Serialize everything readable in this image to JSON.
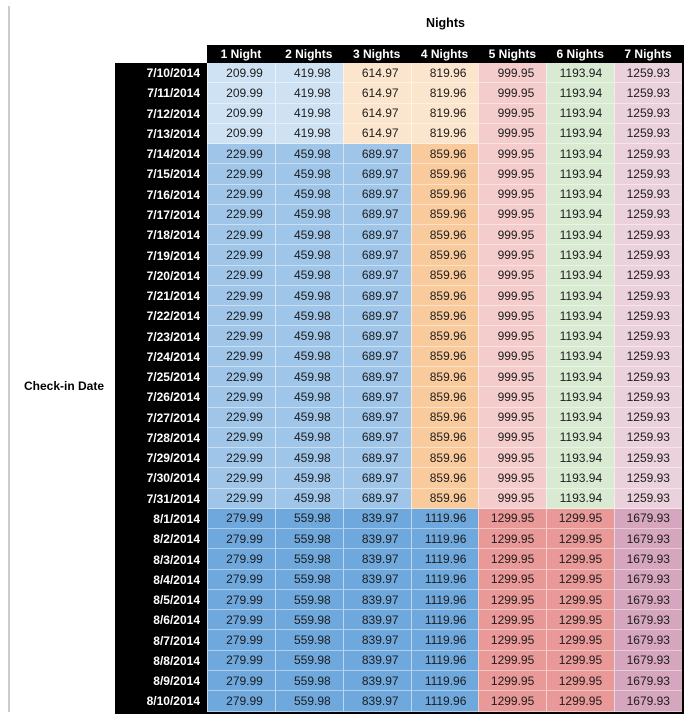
{
  "page": {
    "title": "Nights",
    "row_axis_label": "Check-in Date"
  },
  "palette": {
    "header_bg": "#000000",
    "header_text": "#ffffff",
    "value_text": "#1c1c1c",
    "left_rule": "#cccccc",
    "blue_light": "#cfe2f3",
    "blue_mid": "#9fc5e8",
    "blue_dark": "#6fa8dc",
    "orange_light": "#fce5cd",
    "orange_mid": "#f9cb9c",
    "red_light": "#f4cccc",
    "red_mid": "#ea9999",
    "green_light": "#d9ead3",
    "purple_light": "#ead1dc",
    "purple_mid": "#d5a6bd"
  },
  "chart_data": {
    "type": "table",
    "title": "Nights",
    "row_axis_label": "Check-in Date",
    "columns": [
      "1 Night",
      "2 Nights",
      "3 Nights",
      "4 Nights",
      "5 Nights",
      "6 Nights",
      "7 Nights"
    ],
    "band_cell_colors": {
      "b1": [
        "blue_light",
        "blue_light",
        "orange_light",
        "orange_light",
        "red_light",
        "green_light",
        "purple_light"
      ],
      "b2": [
        "blue_mid",
        "blue_mid",
        "blue_mid",
        "orange_mid",
        "red_light",
        "green_light",
        "purple_light"
      ],
      "b3": [
        "blue_dark",
        "blue_dark",
        "blue_dark",
        "blue_dark",
        "red_mid",
        "red_mid",
        "purple_mid"
      ]
    },
    "rows": [
      {
        "date": "7/10/2014",
        "band": "b1",
        "values": [
          "209.99",
          "419.98",
          "614.97",
          "819.96",
          "999.95",
          "1193.94",
          "1259.93"
        ]
      },
      {
        "date": "7/11/2014",
        "band": "b1",
        "values": [
          "209.99",
          "419.98",
          "614.97",
          "819.96",
          "999.95",
          "1193.94",
          "1259.93"
        ]
      },
      {
        "date": "7/12/2014",
        "band": "b1",
        "values": [
          "209.99",
          "419.98",
          "614.97",
          "819.96",
          "999.95",
          "1193.94",
          "1259.93"
        ]
      },
      {
        "date": "7/13/2014",
        "band": "b1",
        "values": [
          "209.99",
          "419.98",
          "614.97",
          "819.96",
          "999.95",
          "1193.94",
          "1259.93"
        ]
      },
      {
        "date": "7/14/2014",
        "band": "b2",
        "values": [
          "229.99",
          "459.98",
          "689.97",
          "859.96",
          "999.95",
          "1193.94",
          "1259.93"
        ]
      },
      {
        "date": "7/15/2014",
        "band": "b2",
        "values": [
          "229.99",
          "459.98",
          "689.97",
          "859.96",
          "999.95",
          "1193.94",
          "1259.93"
        ]
      },
      {
        "date": "7/16/2014",
        "band": "b2",
        "values": [
          "229.99",
          "459.98",
          "689.97",
          "859.96",
          "999.95",
          "1193.94",
          "1259.93"
        ]
      },
      {
        "date": "7/17/2014",
        "band": "b2",
        "values": [
          "229.99",
          "459.98",
          "689.97",
          "859.96",
          "999.95",
          "1193.94",
          "1259.93"
        ]
      },
      {
        "date": "7/18/2014",
        "band": "b2",
        "values": [
          "229.99",
          "459.98",
          "689.97",
          "859.96",
          "999.95",
          "1193.94",
          "1259.93"
        ]
      },
      {
        "date": "7/19/2014",
        "band": "b2",
        "values": [
          "229.99",
          "459.98",
          "689.97",
          "859.96",
          "999.95",
          "1193.94",
          "1259.93"
        ]
      },
      {
        "date": "7/20/2014",
        "band": "b2",
        "values": [
          "229.99",
          "459.98",
          "689.97",
          "859.96",
          "999.95",
          "1193.94",
          "1259.93"
        ]
      },
      {
        "date": "7/21/2014",
        "band": "b2",
        "values": [
          "229.99",
          "459.98",
          "689.97",
          "859.96",
          "999.95",
          "1193.94",
          "1259.93"
        ]
      },
      {
        "date": "7/22/2014",
        "band": "b2",
        "values": [
          "229.99",
          "459.98",
          "689.97",
          "859.96",
          "999.95",
          "1193.94",
          "1259.93"
        ]
      },
      {
        "date": "7/23/2014",
        "band": "b2",
        "values": [
          "229.99",
          "459.98",
          "689.97",
          "859.96",
          "999.95",
          "1193.94",
          "1259.93"
        ]
      },
      {
        "date": "7/24/2014",
        "band": "b2",
        "values": [
          "229.99",
          "459.98",
          "689.97",
          "859.96",
          "999.95",
          "1193.94",
          "1259.93"
        ]
      },
      {
        "date": "7/25/2014",
        "band": "b2",
        "values": [
          "229.99",
          "459.98",
          "689.97",
          "859.96",
          "999.95",
          "1193.94",
          "1259.93"
        ]
      },
      {
        "date": "7/26/2014",
        "band": "b2",
        "values": [
          "229.99",
          "459.98",
          "689.97",
          "859.96",
          "999.95",
          "1193.94",
          "1259.93"
        ]
      },
      {
        "date": "7/27/2014",
        "band": "b2",
        "values": [
          "229.99",
          "459.98",
          "689.97",
          "859.96",
          "999.95",
          "1193.94",
          "1259.93"
        ]
      },
      {
        "date": "7/28/2014",
        "band": "b2",
        "values": [
          "229.99",
          "459.98",
          "689.97",
          "859.96",
          "999.95",
          "1193.94",
          "1259.93"
        ]
      },
      {
        "date": "7/29/2014",
        "band": "b2",
        "values": [
          "229.99",
          "459.98",
          "689.97",
          "859.96",
          "999.95",
          "1193.94",
          "1259.93"
        ]
      },
      {
        "date": "7/30/2014",
        "band": "b2",
        "values": [
          "229.99",
          "459.98",
          "689.97",
          "859.96",
          "999.95",
          "1193.94",
          "1259.93"
        ]
      },
      {
        "date": "7/31/2014",
        "band": "b2",
        "values": [
          "229.99",
          "459.98",
          "689.97",
          "859.96",
          "999.95",
          "1193.94",
          "1259.93"
        ]
      },
      {
        "date": "8/1/2014",
        "band": "b3",
        "values": [
          "279.99",
          "559.98",
          "839.97",
          "1119.96",
          "1299.95",
          "1299.95",
          "1679.93"
        ]
      },
      {
        "date": "8/2/2014",
        "band": "b3",
        "values": [
          "279.99",
          "559.98",
          "839.97",
          "1119.96",
          "1299.95",
          "1299.95",
          "1679.93"
        ]
      },
      {
        "date": "8/3/2014",
        "band": "b3",
        "values": [
          "279.99",
          "559.98",
          "839.97",
          "1119.96",
          "1299.95",
          "1299.95",
          "1679.93"
        ]
      },
      {
        "date": "8/4/2014",
        "band": "b3",
        "values": [
          "279.99",
          "559.98",
          "839.97",
          "1119.96",
          "1299.95",
          "1299.95",
          "1679.93"
        ]
      },
      {
        "date": "8/5/2014",
        "band": "b3",
        "values": [
          "279.99",
          "559.98",
          "839.97",
          "1119.96",
          "1299.95",
          "1299.95",
          "1679.93"
        ]
      },
      {
        "date": "8/6/2014",
        "band": "b3",
        "values": [
          "279.99",
          "559.98",
          "839.97",
          "1119.96",
          "1299.95",
          "1299.95",
          "1679.93"
        ]
      },
      {
        "date": "8/7/2014",
        "band": "b3",
        "values": [
          "279.99",
          "559.98",
          "839.97",
          "1119.96",
          "1299.95",
          "1299.95",
          "1679.93"
        ]
      },
      {
        "date": "8/8/2014",
        "band": "b3",
        "values": [
          "279.99",
          "559.98",
          "839.97",
          "1119.96",
          "1299.95",
          "1299.95",
          "1679.93"
        ]
      },
      {
        "date": "8/9/2014",
        "band": "b3",
        "values": [
          "279.99",
          "559.98",
          "839.97",
          "1119.96",
          "1299.95",
          "1299.95",
          "1679.93"
        ]
      },
      {
        "date": "8/10/2014",
        "band": "b3",
        "values": [
          "279.99",
          "559.98",
          "839.97",
          "1119.96",
          "1299.95",
          "1299.95",
          "1679.93"
        ]
      }
    ]
  }
}
